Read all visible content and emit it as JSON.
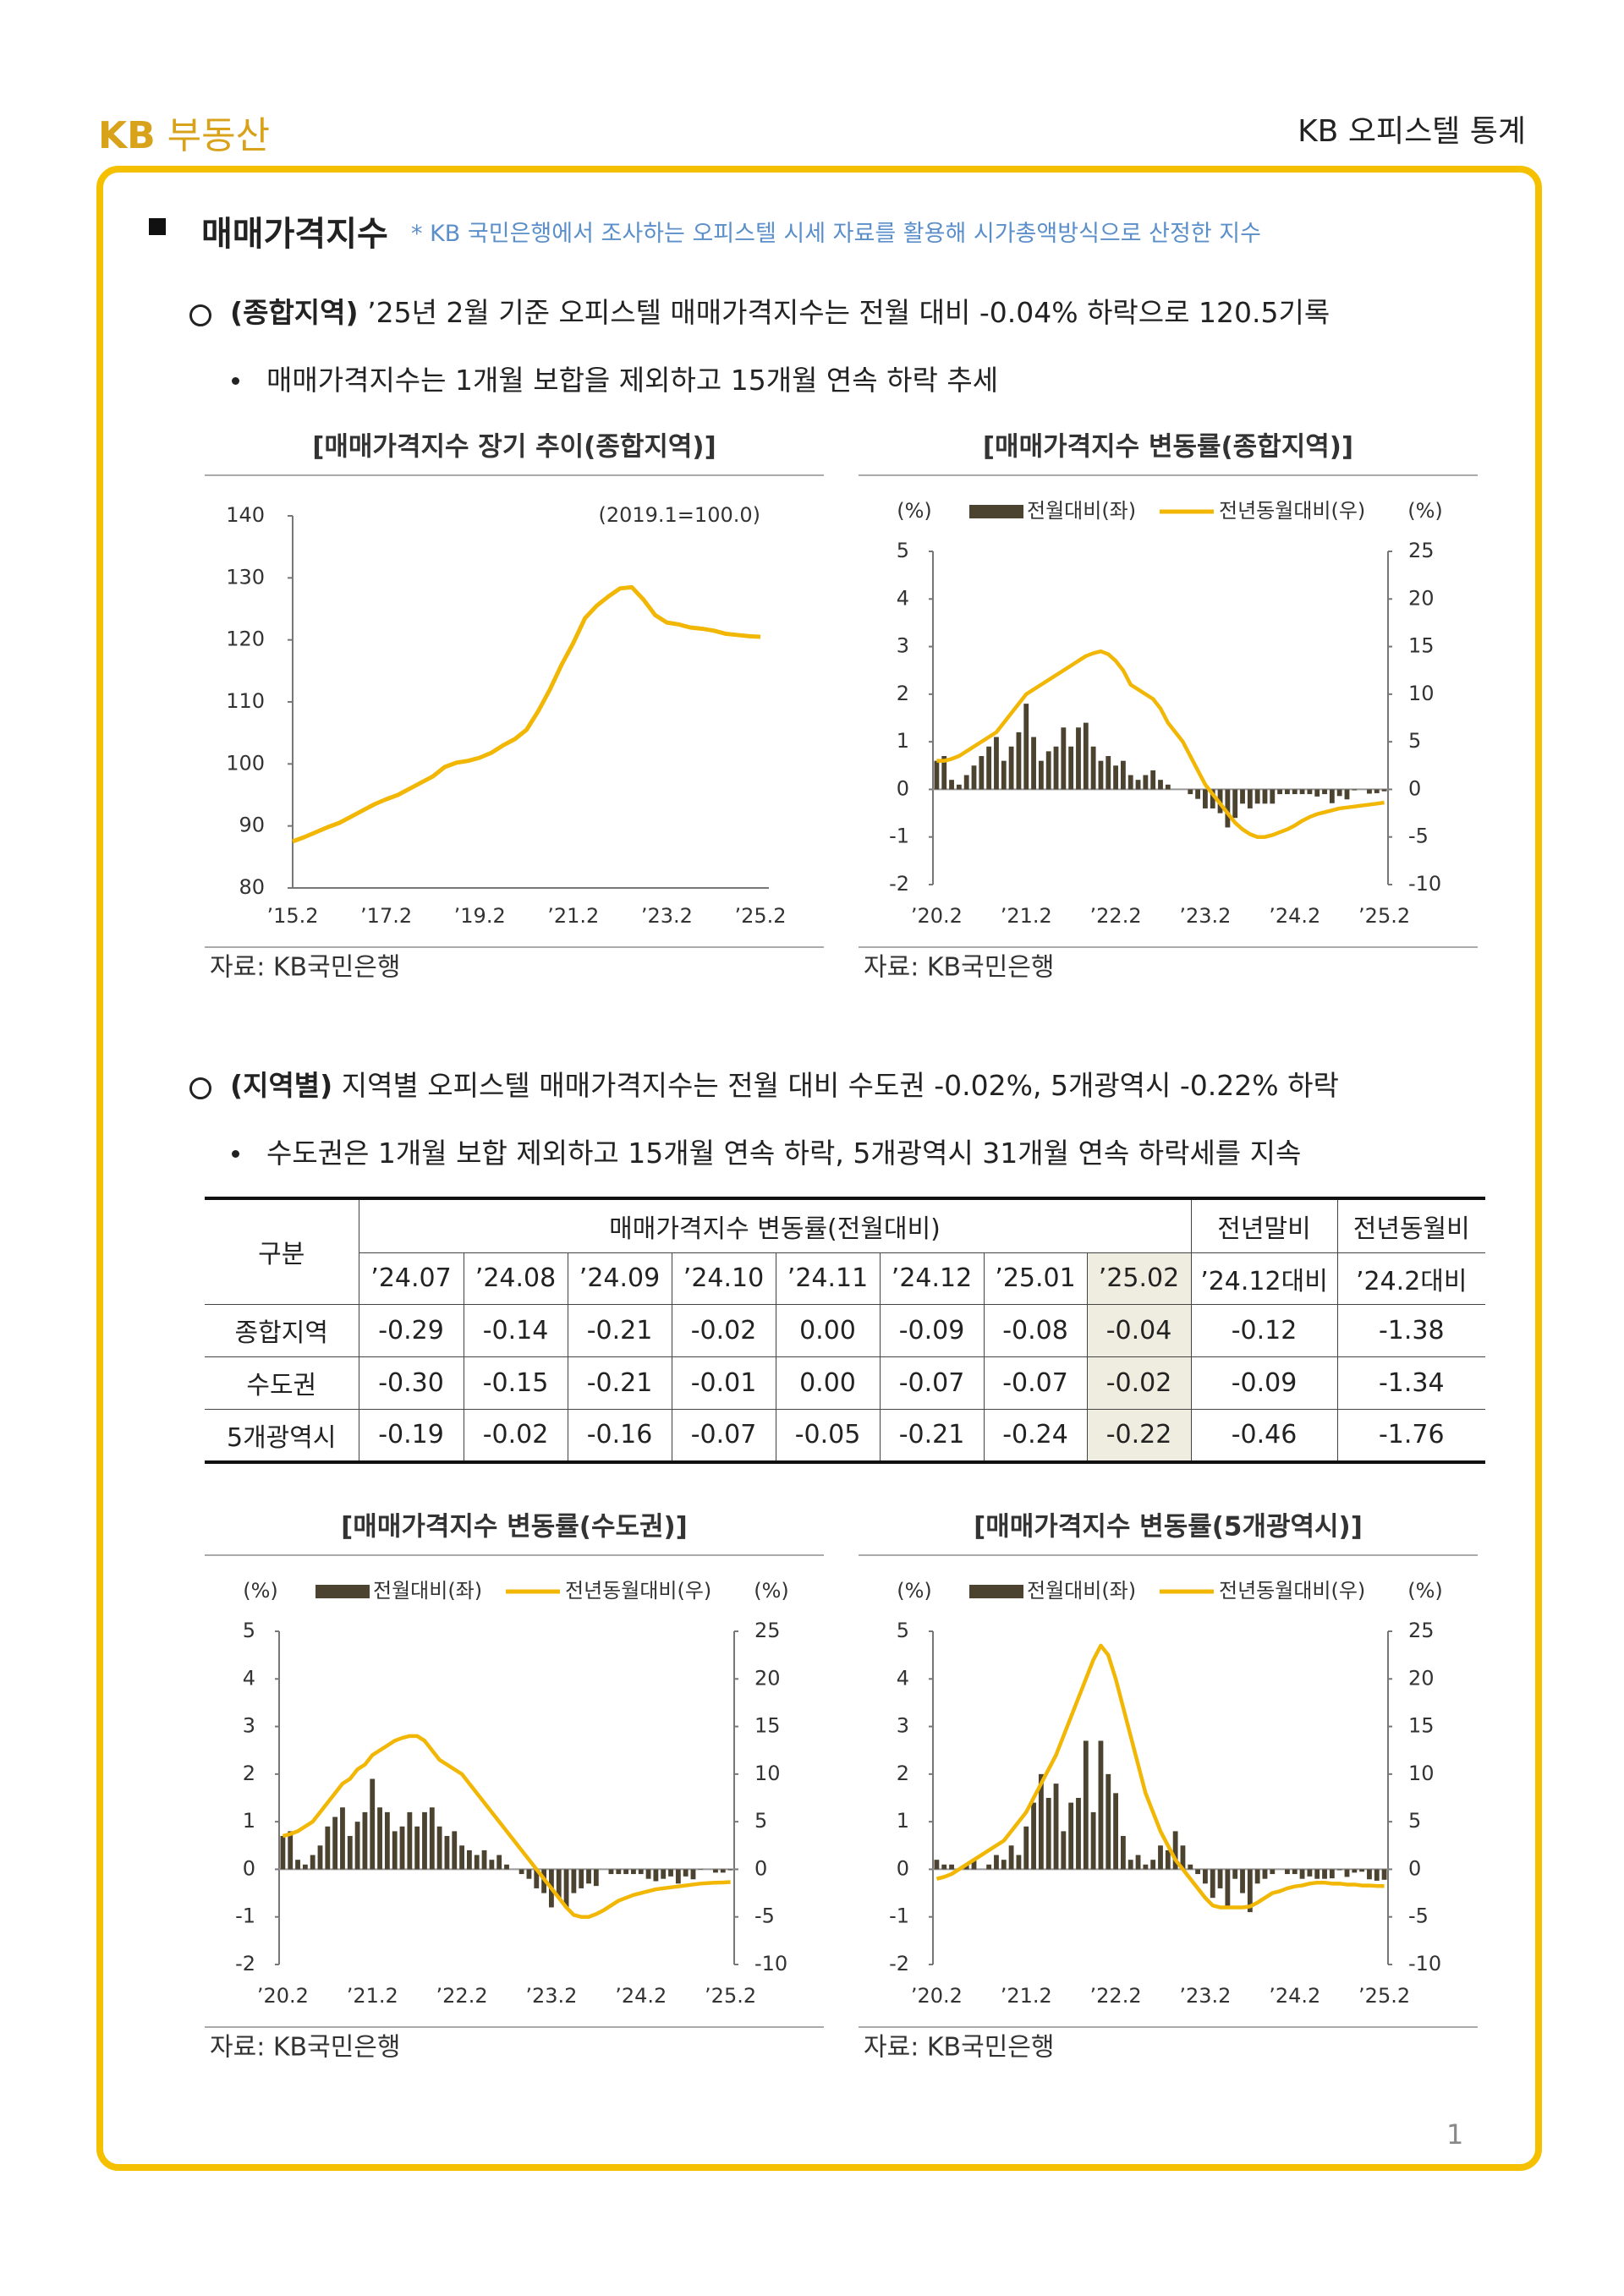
{
  "header": {
    "logo_mark": "KB",
    "logo_text": "부동산",
    "title": "KB 오피스텔 통계"
  },
  "page_number": "1",
  "section": {
    "title": "매매가격지수",
    "note": "* KB 국민은행에서 조사하는 오피스텔 시세 자료를 활용해 시가총액방식으로 산정한 지수"
  },
  "para1": {
    "label": "(종합지역)",
    "text": " ’25년 2월 기준 오피스텔 매매가격지수는 전월 대비 -0.04% 하락으로 120.5기록",
    "bullet": "매매가격지수는 1개월 보합을 제외하고 15개월 연속 하락 추세"
  },
  "para2": {
    "label": "(지역별)",
    "text": " 지역별 오피스텔 매매가격지수는 전월 대비 수도권 -0.02%, 5개광역시 -0.22% 하락",
    "bullet": "수도권은 1개월 보합 제외하고 15개월 연속 하락, 5개광역시 31개월 연속 하락세를 지속"
  },
  "table": {
    "header_top": [
      "구분",
      "매매가격지수 변동률(전월대비)",
      "전년말비",
      "전년동월비"
    ],
    "header_sub": [
      "’24.07",
      "’24.08",
      "’24.09",
      "’24.10",
      "’24.11",
      "’24.12",
      "’25.01",
      "’25.02",
      "’24.12대비",
      "’24.2대비"
    ],
    "highlight_column": 7,
    "rows": [
      [
        "종합지역",
        "-0.29",
        "-0.14",
        "-0.21",
        "-0.02",
        "0.00",
        "-0.09",
        "-0.08",
        "-0.04",
        "-0.12",
        "-1.38"
      ],
      [
        "수도권",
        "-0.30",
        "-0.15",
        "-0.21",
        "-0.01",
        "0.00",
        "-0.07",
        "-0.07",
        "-0.02",
        "-0.09",
        "-1.34"
      ],
      [
        "5개광역시",
        "-0.19",
        "-0.02",
        "-0.16",
        "-0.07",
        "-0.05",
        "-0.21",
        "-0.24",
        "-0.22",
        "-0.46",
        "-1.76"
      ]
    ]
  },
  "chart_data": [
    {
      "type": "line",
      "title": "[매매가격지수 장기 추이(종합지역)]",
      "annotation": "(2019.1=100.0)",
      "source": "자료: KB국민은행",
      "categories": [
        "’15.2",
        null,
        null,
        null,
        null,
        null,
        null,
        null,
        "’17.2",
        null,
        null,
        null,
        null,
        null,
        null,
        null,
        "’19.2",
        null,
        null,
        null,
        null,
        null,
        null,
        null,
        "’21.2",
        null,
        null,
        null,
        null,
        null,
        null,
        null,
        "’23.2",
        null,
        null,
        null,
        null,
        null,
        null,
        null,
        "’25.2"
      ],
      "values": [
        87.5,
        88.2,
        89.0,
        89.8,
        90.5,
        91.5,
        92.5,
        93.5,
        94.3,
        95.0,
        96.0,
        97.0,
        98.0,
        99.5,
        100.2,
        100.5,
        101.0,
        101.8,
        103.0,
        104.0,
        105.5,
        108.5,
        112.0,
        116.0,
        119.5,
        123.5,
        125.5,
        127.0,
        128.3,
        128.5,
        126.5,
        124.0,
        122.8,
        122.5,
        122.0,
        121.8,
        121.5,
        121.0,
        120.8,
        120.6,
        120.5
      ],
      "color": "#f2b705",
      "ylim": [
        80,
        140
      ],
      "yticks": [
        80,
        90,
        100,
        110,
        120,
        130,
        140
      ]
    },
    {
      "type": "combo",
      "title": "[매매가격지수 변동률(종합지역)]",
      "ylabel": "(%)",
      "y2label": "(%)",
      "source": "자료: KB국민은행",
      "categories": [
        "’20.2",
        null,
        null,
        null,
        null,
        null,
        null,
        null,
        null,
        null,
        null,
        null,
        "’21.2",
        null,
        null,
        null,
        null,
        null,
        null,
        null,
        null,
        null,
        null,
        null,
        "’22.2",
        null,
        null,
        null,
        null,
        null,
        null,
        null,
        null,
        null,
        null,
        null,
        "’23.2",
        null,
        null,
        null,
        null,
        null,
        null,
        null,
        null,
        null,
        null,
        null,
        "’24.2",
        null,
        null,
        null,
        null,
        null,
        null,
        null,
        null,
        null,
        null,
        null,
        "’25.2"
      ],
      "series": [
        {
          "name": "전월대비(좌)",
          "color": "#4b4330",
          "axis": "y",
          "values": [
            0.6,
            0.7,
            0.2,
            0.1,
            0.3,
            0.5,
            0.7,
            0.9,
            1.1,
            0.6,
            0.9,
            1.2,
            1.8,
            1.1,
            0.6,
            0.8,
            0.9,
            1.3,
            0.9,
            1.3,
            1.4,
            0.9,
            0.6,
            0.7,
            0.5,
            0.6,
            0.3,
            0.2,
            0.3,
            0.4,
            0.2,
            0.1,
            0.0,
            0.0,
            -0.1,
            -0.2,
            -0.4,
            -0.4,
            -0.5,
            -0.8,
            -0.6,
            -0.3,
            -0.4,
            -0.3,
            -0.3,
            -0.3,
            -0.1,
            -0.1,
            -0.1,
            -0.1,
            -0.1,
            -0.15,
            -0.1,
            -0.29,
            -0.14,
            -0.21,
            -0.02,
            0.0,
            -0.09,
            -0.08,
            -0.04
          ]
        },
        {
          "name": "전년동월대비(우)",
          "color": "#f2b705",
          "axis": "y2",
          "values": [
            3,
            3,
            3.2,
            3.5,
            4,
            4.5,
            5,
            5.5,
            6,
            7,
            8,
            9,
            10,
            10.5,
            11,
            11.5,
            12,
            12.5,
            13,
            13.5,
            14,
            14.3,
            14.5,
            14.2,
            13.5,
            12.5,
            11,
            10.5,
            10,
            9.5,
            8.5,
            7,
            6,
            5,
            3.5,
            2,
            0.5,
            -0.5,
            -1.5,
            -2.5,
            -3.5,
            -4.2,
            -4.7,
            -5,
            -5,
            -4.8,
            -4.5,
            -4.2,
            -3.8,
            -3.3,
            -2.9,
            -2.6,
            -2.4,
            -2.2,
            -2.0,
            -1.9,
            -1.8,
            -1.7,
            -1.6,
            -1.5,
            -1.38
          ]
        }
      ],
      "ylim": [
        -2,
        5
      ],
      "yticks": [
        -2,
        -1,
        0,
        1,
        2,
        3,
        4,
        5
      ],
      "y2lim": [
        -10,
        25
      ],
      "y2ticks": [
        -10,
        -5,
        0,
        5,
        10,
        15,
        20,
        25
      ]
    },
    {
      "type": "combo",
      "title": "[매매가격지수 변동률(수도권)]",
      "ylabel": "(%)",
      "y2label": "(%)",
      "source": "자료: KB국민은행",
      "categories": [
        "’20.2",
        null,
        null,
        null,
        null,
        null,
        null,
        null,
        null,
        null,
        null,
        null,
        "’21.2",
        null,
        null,
        null,
        null,
        null,
        null,
        null,
        null,
        null,
        null,
        null,
        "’22.2",
        null,
        null,
        null,
        null,
        null,
        null,
        null,
        null,
        null,
        null,
        null,
        "’23.2",
        null,
        null,
        null,
        null,
        null,
        null,
        null,
        null,
        null,
        null,
        null,
        "’24.2",
        null,
        null,
        null,
        null,
        null,
        null,
        null,
        null,
        null,
        null,
        null,
        "’25.2"
      ],
      "series": [
        {
          "name": "전월대비(좌)",
          "color": "#4b4330",
          "axis": "y",
          "values": [
            0.7,
            0.8,
            0.2,
            0.1,
            0.3,
            0.5,
            0.9,
            1.1,
            1.3,
            0.7,
            1.0,
            1.2,
            1.9,
            1.3,
            1.2,
            0.8,
            0.9,
            1.2,
            0.9,
            1.2,
            1.3,
            0.9,
            0.7,
            0.8,
            0.5,
            0.4,
            0.3,
            0.4,
            0.2,
            0.3,
            0.1,
            0.0,
            -0.1,
            -0.2,
            -0.4,
            -0.5,
            -0.8,
            -0.6,
            -0.8,
            -0.5,
            -0.4,
            -0.3,
            -0.35,
            0.0,
            -0.1,
            -0.1,
            -0.1,
            -0.1,
            -0.1,
            -0.2,
            -0.25,
            -0.2,
            -0.15,
            -0.3,
            -0.15,
            -0.21,
            -0.01,
            0.0,
            -0.07,
            -0.07,
            -0.02
          ]
        },
        {
          "name": "전년동월대비(우)",
          "color": "#f2b705",
          "axis": "y2",
          "values": [
            3.5,
            3.7,
            4,
            4.5,
            5,
            6,
            7,
            8,
            9,
            9.5,
            10.5,
            11,
            12,
            12.5,
            13,
            13.5,
            13.8,
            14,
            14,
            13.5,
            12.5,
            11.5,
            11,
            10.5,
            10,
            9,
            8,
            7,
            6,
            5,
            4,
            3,
            2,
            1,
            0,
            -1,
            -2,
            -3,
            -4,
            -4.8,
            -5,
            -5,
            -4.7,
            -4.3,
            -3.8,
            -3.3,
            -3,
            -2.7,
            -2.5,
            -2.3,
            -2.1,
            -2,
            -1.9,
            -1.8,
            -1.7,
            -1.6,
            -1.5,
            -1.45,
            -1.4,
            -1.38,
            -1.34
          ]
        }
      ],
      "ylim": [
        -2,
        5
      ],
      "yticks": [
        -2,
        -1,
        0,
        1,
        2,
        3,
        4,
        5
      ],
      "y2lim": [
        -10,
        25
      ],
      "y2ticks": [
        -10,
        -5,
        0,
        5,
        10,
        15,
        20,
        25
      ]
    },
    {
      "type": "combo",
      "title": "[매매가격지수 변동률(5개광역시)]",
      "ylabel": "(%)",
      "y2label": "(%)",
      "source": "자료: KB국민은행",
      "categories": [
        "’20.2",
        null,
        null,
        null,
        null,
        null,
        null,
        null,
        null,
        null,
        null,
        null,
        "’21.2",
        null,
        null,
        null,
        null,
        null,
        null,
        null,
        null,
        null,
        null,
        null,
        "’22.2",
        null,
        null,
        null,
        null,
        null,
        null,
        null,
        null,
        null,
        null,
        null,
        "’23.2",
        null,
        null,
        null,
        null,
        null,
        null,
        null,
        null,
        null,
        null,
        null,
        "’24.2",
        null,
        null,
        null,
        null,
        null,
        null,
        null,
        null,
        null,
        null,
        null,
        "’25.2"
      ],
      "series": [
        {
          "name": "전월대비(좌)",
          "color": "#4b4330",
          "axis": "y",
          "values": [
            0.2,
            0.1,
            0.1,
            0.0,
            0.1,
            0.2,
            0.0,
            0.1,
            0.3,
            0.2,
            0.5,
            0.3,
            0.9,
            1.4,
            2.0,
            1.5,
            1.8,
            0.8,
            1.4,
            1.5,
            2.7,
            1.2,
            2.7,
            2.0,
            1.6,
            0.7,
            0.2,
            0.3,
            0.1,
            0.2,
            0.5,
            0.4,
            0.8,
            0.5,
            0.1,
            -0.1,
            -0.3,
            -0.6,
            -0.4,
            -0.8,
            -0.2,
            -0.5,
            -0.9,
            -0.3,
            -0.2,
            -0.1,
            0.0,
            -0.1,
            -0.1,
            -0.2,
            -0.15,
            -0.2,
            -0.2,
            -0.19,
            -0.02,
            -0.16,
            -0.07,
            -0.05,
            -0.21,
            -0.24,
            -0.22
          ]
        },
        {
          "name": "전년동월대비(우)",
          "color": "#f2b705",
          "axis": "y2",
          "values": [
            -1,
            -0.8,
            -0.5,
            0,
            0.5,
            1,
            1.5,
            2,
            2.5,
            3,
            4,
            5,
            6,
            7.5,
            9,
            10.5,
            12,
            14,
            16,
            18,
            20,
            22,
            23.5,
            22.5,
            20,
            17,
            14,
            11,
            8,
            6,
            4,
            2.5,
            1,
            0,
            -1,
            -2,
            -3,
            -3.8,
            -4,
            -4,
            -4,
            -4,
            -3.9,
            -3.5,
            -3,
            -2.5,
            -2.3,
            -2.0,
            -1.8,
            -1.7,
            -1.5,
            -1.4,
            -1.4,
            -1.5,
            -1.5,
            -1.6,
            -1.6,
            -1.7,
            -1.7,
            -1.75,
            -1.76
          ]
        }
      ],
      "ylim": [
        -2,
        5
      ],
      "yticks": [
        -2,
        -1,
        0,
        1,
        2,
        3,
        4,
        5
      ],
      "y2lim": [
        -10,
        25
      ],
      "y2ticks": [
        -10,
        -5,
        0,
        5,
        10,
        15,
        20,
        25
      ]
    }
  ]
}
